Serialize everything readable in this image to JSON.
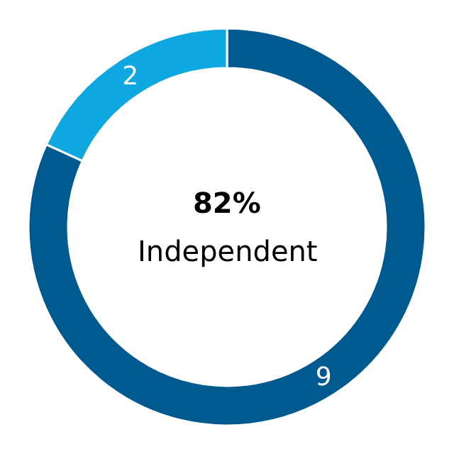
{
  "chart_data": {
    "type": "donut",
    "categories": [
      null,
      null
    ],
    "values": [
      9,
      2
    ],
    "colors": [
      "#005a8f",
      "#0ea7e0"
    ],
    "data_labels": true,
    "legend": false,
    "annotations": [
      "82%",
      "Independent"
    ]
  }
}
